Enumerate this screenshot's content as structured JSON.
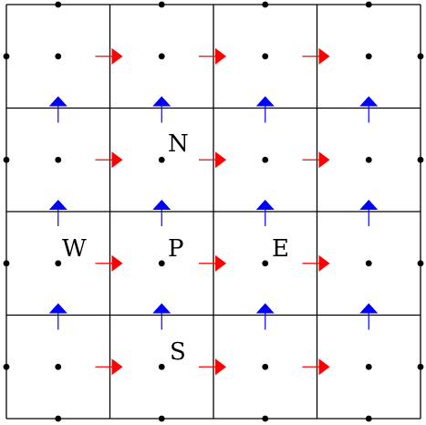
{
  "grid": {
    "columns": 4,
    "rows": 4
  },
  "node_labels": {
    "north": "N",
    "west": "W",
    "point": "P",
    "east": "E",
    "south": "S"
  },
  "colors": {
    "grid_line": "#000000",
    "node_dot": "#000000",
    "east_face_arrow": "#ff0000",
    "north_face_arrow": "#0000ff"
  }
}
